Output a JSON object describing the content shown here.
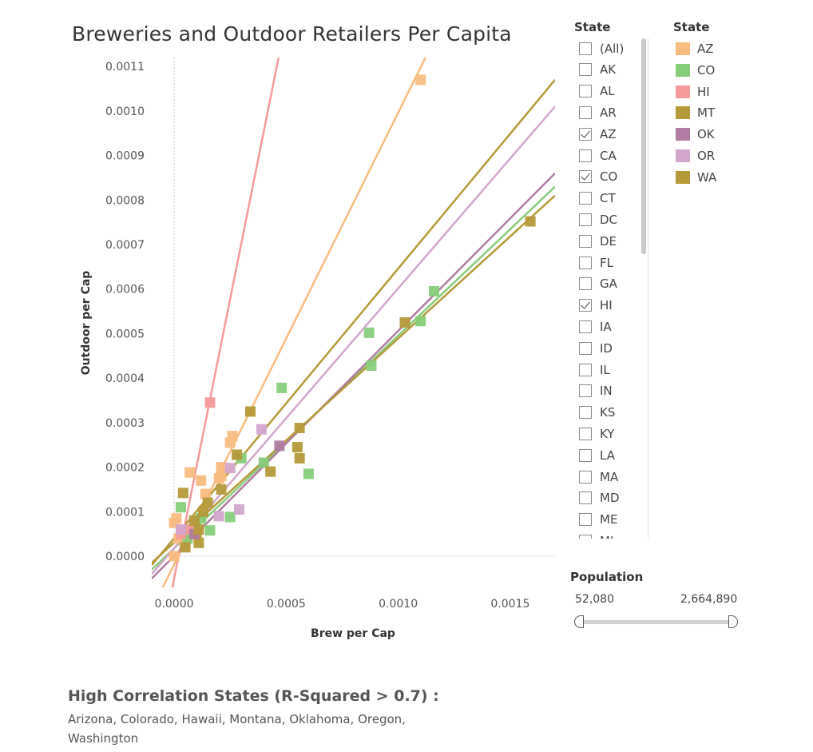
{
  "title": "Breweries and Outdoor Retailers Per Capita",
  "state_filter": {
    "header": "State",
    "items": [
      {
        "label": "(All)",
        "checked": false
      },
      {
        "label": "AK",
        "checked": false
      },
      {
        "label": "AL",
        "checked": false
      },
      {
        "label": "AR",
        "checked": false
      },
      {
        "label": "AZ",
        "checked": true
      },
      {
        "label": "CA",
        "checked": false
      },
      {
        "label": "CO",
        "checked": true
      },
      {
        "label": "CT",
        "checked": false
      },
      {
        "label": "DC",
        "checked": false
      },
      {
        "label": "DE",
        "checked": false
      },
      {
        "label": "FL",
        "checked": false
      },
      {
        "label": "GA",
        "checked": false
      },
      {
        "label": "HI",
        "checked": true
      },
      {
        "label": "IA",
        "checked": false
      },
      {
        "label": "ID",
        "checked": false
      },
      {
        "label": "IL",
        "checked": false
      },
      {
        "label": "IN",
        "checked": false
      },
      {
        "label": "KS",
        "checked": false
      },
      {
        "label": "KY",
        "checked": false
      },
      {
        "label": "LA",
        "checked": false
      },
      {
        "label": "MA",
        "checked": false
      },
      {
        "label": "MD",
        "checked": false
      },
      {
        "label": "ME",
        "checked": false
      },
      {
        "label": "MI",
        "checked": false
      }
    ]
  },
  "legend": {
    "header": "State",
    "items": [
      {
        "label": "AZ",
        "color": "#f9bc7f"
      },
      {
        "label": "CO",
        "color": "#86cd7a"
      },
      {
        "label": "HI",
        "color": "#f59a9a"
      },
      {
        "label": "MT",
        "color": "#b59938"
      },
      {
        "label": "OK",
        "color": "#b07aa1"
      },
      {
        "label": "OR",
        "color": "#d3a6cc"
      },
      {
        "label": "WA",
        "color": "#b59938"
      }
    ]
  },
  "population": {
    "title": "Population",
    "min_label": "52,080",
    "max_label": "2,664,890"
  },
  "high_correlation": {
    "title": "High Correlation States (R-Squared > 0.7) :",
    "text": "Arizona, Colorado, Hawaii, Montana, Oklahoma, Oregon, Washington"
  },
  "chart_data": {
    "type": "scatter",
    "xlabel": "Brew per Cap",
    "ylabel": "Outdoor per Cap",
    "xlim": [
      -0.0001,
      0.0017
    ],
    "ylim": [
      -7e-05,
      0.00112
    ],
    "x_ticks": [
      "0.0000",
      "0.0005",
      "0.0010",
      "0.0015"
    ],
    "x_tick_values": [
      0,
      0.0005,
      0.001,
      0.0015
    ],
    "y_ticks": [
      "0.0000",
      "0.0001",
      "0.0002",
      "0.0003",
      "0.0004",
      "0.0005",
      "0.0006",
      "0.0007",
      "0.0008",
      "0.0009",
      "0.0010",
      "0.0011"
    ],
    "y_tick_values": [
      0,
      0.0001,
      0.0002,
      0.0003,
      0.0004,
      0.0005,
      0.0006,
      0.0007,
      0.0008,
      0.0009,
      0.001,
      0.0011
    ],
    "series": [
      {
        "name": "AZ",
        "color": "#f9bc7f",
        "points": [
          [
            0.0011,
            0.00107
          ],
          [
            0.00026,
            0.00027
          ],
          [
            0.00025,
            0.000255
          ],
          [
            0.00021,
            0.0002
          ],
          [
            0.00021,
            0.00018
          ],
          [
            0.0002,
            0.000175
          ],
          [
            0.00012,
            0.00017
          ],
          [
            7e-05,
            0.000188
          ],
          [
            0.00014,
            0.00014
          ],
          [
            1e-05,
            8.5e-05
          ],
          [
            0.0,
            7.5e-05
          ],
          [
            2e-05,
            4e-05
          ],
          [
            5e-05,
            3e-05
          ],
          [
            0.0,
            0.0
          ]
        ],
        "trend": [
          [
            -0.0001,
            -0.00012
          ],
          [
            0.00125,
            0.00125
          ]
        ]
      },
      {
        "name": "CO",
        "color": "#86cd7a",
        "points": [
          [
            0.00116,
            0.000595
          ],
          [
            0.0011,
            0.000528
          ],
          [
            0.00087,
            0.000502
          ],
          [
            0.00088,
            0.000428
          ],
          [
            0.00048,
            0.000378
          ],
          [
            0.0006,
            0.000185
          ],
          [
            0.0004,
            0.00021
          ],
          [
            0.0003,
            0.00022
          ],
          [
            0.00025,
            8.8e-05
          ],
          [
            0.00016,
            5.8e-05
          ],
          [
            3e-05,
            0.00011
          ],
          [
            0.00012,
            8.5e-05
          ],
          [
            6e-05,
            4e-05
          ]
        ],
        "trend": [
          [
            -0.0001,
            -3e-05
          ],
          [
            0.0017,
            0.00083
          ]
        ]
      },
      {
        "name": "HI",
        "color": "#f59a9a",
        "points": [
          [
            0.00016,
            0.000345
          ],
          [
            6e-05,
            6e-05
          ],
          [
            3e-05,
            5e-05
          ]
        ],
        "trend": [
          [
            -2e-05,
            -0.0001
          ],
          [
            0.00049,
            0.00118
          ]
        ]
      },
      {
        "name": "MT",
        "color": "#b59938",
        "points": [
          [
            0.00034,
            0.000325
          ],
          [
            0.00056,
            0.000288
          ],
          [
            0.00028,
            0.000228
          ],
          [
            0.00055,
            0.000245
          ],
          [
            0.00056,
            0.00022
          ],
          [
            0.00043,
            0.00019
          ],
          [
            0.00021,
            0.00015
          ],
          [
            4e-05,
            0.000142
          ],
          [
            0.00015,
            0.00012
          ],
          [
            0.00013,
            0.0001
          ],
          [
            9e-05,
            8e-05
          ],
          [
            0.0001,
            5e-05
          ],
          [
            0.00011,
            3e-05
          ],
          [
            5e-05,
            2e-05
          ]
        ],
        "trend": [
          [
            -0.0001,
            -2e-05
          ],
          [
            0.0017,
            0.00107
          ]
        ]
      },
      {
        "name": "OK",
        "color": "#b07aa1",
        "points": [
          [
            0.00047,
            0.000248
          ],
          [
            9e-05,
            5e-05
          ]
        ],
        "trend": [
          [
            -0.0001,
            -5e-05
          ],
          [
            0.0017,
            0.00086
          ]
        ]
      },
      {
        "name": "OR",
        "color": "#d3a6cc",
        "points": [
          [
            0.00039,
            0.000285
          ],
          [
            0.00025,
            0.000198
          ],
          [
            0.00029,
            0.000105
          ],
          [
            0.0002,
            9e-05
          ],
          [
            3e-05,
            6e-05
          ]
        ],
        "trend": [
          [
            -0.0001,
            -4e-05
          ],
          [
            0.0017,
            0.00101
          ]
        ]
      },
      {
        "name": "WA",
        "color": "#b59938",
        "points": [
          [
            0.00159,
            0.000752
          ],
          [
            0.00103,
            0.000525
          ],
          [
            0.00011,
            6e-05
          ]
        ],
        "trend": [
          [
            -0.0001,
            -1.5e-05
          ],
          [
            0.0017,
            0.00081
          ]
        ]
      }
    ]
  }
}
